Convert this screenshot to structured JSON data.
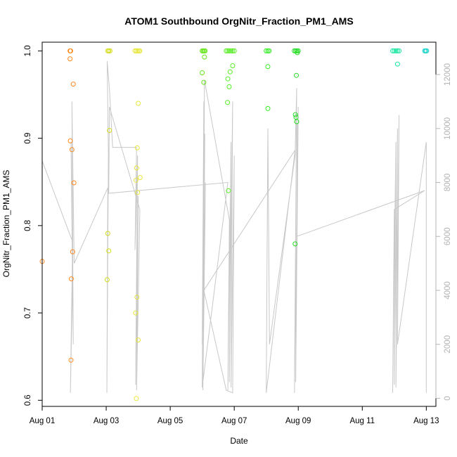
{
  "chart_data": {
    "type": "scatter",
    "title": "ATOM1 Southbound OrgNitr_Fraction_PM1_AMS",
    "xlabel": "Date",
    "ylabel": "OrgNitr_Fraction_PM1_AMS",
    "y2label": "",
    "xlim": [
      0,
      12.3
    ],
    "ylim": [
      0.593,
      1.01
    ],
    "y2lim": [
      -300,
      13200
    ],
    "x_ticks": [
      {
        "value": 0,
        "label": "Aug 01"
      },
      {
        "value": 2,
        "label": "Aug 03"
      },
      {
        "value": 4,
        "label": "Aug 05"
      },
      {
        "value": 6,
        "label": "Aug 07"
      },
      {
        "value": 8,
        "label": "Aug 09"
      },
      {
        "value": 10,
        "label": "Aug 11"
      },
      {
        "value": 12,
        "label": "Aug 13"
      }
    ],
    "y_ticks": [
      "0.6",
      "0.7",
      "0.8",
      "0.9",
      "1.0"
    ],
    "y2_ticks": [
      "0",
      "2000",
      "4000",
      "6000",
      "8000",
      "10000",
      "12000"
    ],
    "grid": false,
    "legend": "none",
    "colors": {
      "axis": "#000000",
      "secondary_axis": "#b4b4b4",
      "altitude_line": "#c8c8c8"
    },
    "series": [
      {
        "points": [
          {
            "x": 0.0,
            "y": 0.759,
            "color": "#ff8a1e"
          },
          {
            "x": 0.87,
            "y": 1.0,
            "color": "#ff8a1e"
          },
          {
            "x": 0.89,
            "y": 1.0,
            "color": "#ff8a1e"
          },
          {
            "x": 0.87,
            "y": 0.991,
            "color": "#ff8a1e"
          },
          {
            "x": 0.97,
            "y": 0.962,
            "color": "#ff8a1e"
          },
          {
            "x": 0.88,
            "y": 0.897,
            "color": "#ff8a1e"
          },
          {
            "x": 0.93,
            "y": 0.887,
            "color": "#ff8a1e"
          },
          {
            "x": 0.99,
            "y": 0.849,
            "color": "#ff8a1e"
          },
          {
            "x": 0.95,
            "y": 0.77,
            "color": "#ff8a1e"
          },
          {
            "x": 0.91,
            "y": 0.739,
            "color": "#ff8a1e"
          },
          {
            "x": 0.9,
            "y": 0.646,
            "color": "#ff8a1e"
          },
          {
            "x": 2.05,
            "y": 1.0,
            "color": "#d4dc1a"
          },
          {
            "x": 2.08,
            "y": 1.0,
            "color": "#d4dc1a"
          },
          {
            "x": 2.12,
            "y": 1.0,
            "color": "#d4dc1a"
          },
          {
            "x": 2.1,
            "y": 0.909,
            "color": "#d4dc1a"
          },
          {
            "x": 2.05,
            "y": 0.791,
            "color": "#d4dc1a"
          },
          {
            "x": 2.08,
            "y": 0.771,
            "color": "#d4dc1a"
          },
          {
            "x": 2.03,
            "y": 0.738,
            "color": "#d4dc1a"
          },
          {
            "x": 2.9,
            "y": 1.0,
            "color": "#e6e63c"
          },
          {
            "x": 2.94,
            "y": 1.0,
            "color": "#e6e63c"
          },
          {
            "x": 2.98,
            "y": 1.0,
            "color": "#e6e63c"
          },
          {
            "x": 3.02,
            "y": 1.0,
            "color": "#e6e63c"
          },
          {
            "x": 3.05,
            "y": 1.0,
            "color": "#e6e63c"
          },
          {
            "x": 3.0,
            "y": 0.94,
            "color": "#e6e63c"
          },
          {
            "x": 2.97,
            "y": 0.889,
            "color": "#e6e63c"
          },
          {
            "x": 2.95,
            "y": 0.866,
            "color": "#e6e63c"
          },
          {
            "x": 3.06,
            "y": 0.855,
            "color": "#e6e63c"
          },
          {
            "x": 2.93,
            "y": 0.852,
            "color": "#e6e63c"
          },
          {
            "x": 2.98,
            "y": 0.838,
            "color": "#e6e63c"
          },
          {
            "x": 2.96,
            "y": 0.718,
            "color": "#e6e63c"
          },
          {
            "x": 2.92,
            "y": 0.7,
            "color": "#e6e63c"
          },
          {
            "x": 3.0,
            "y": 0.669,
            "color": "#e6e63c"
          },
          {
            "x": 2.94,
            "y": 0.602,
            "color": "#e6e63c"
          },
          {
            "x": 5.0,
            "y": 1.0,
            "color": "#66e61a"
          },
          {
            "x": 5.03,
            "y": 1.0,
            "color": "#66e61a"
          },
          {
            "x": 5.06,
            "y": 1.0,
            "color": "#66e61a"
          },
          {
            "x": 5.09,
            "y": 1.0,
            "color": "#66e61a"
          },
          {
            "x": 5.07,
            "y": 0.993,
            "color": "#66e61a"
          },
          {
            "x": 5.0,
            "y": 0.975,
            "color": "#66e61a"
          },
          {
            "x": 5.05,
            "y": 0.964,
            "color": "#66e61a"
          },
          {
            "x": 5.75,
            "y": 1.0,
            "color": "#55ee22"
          },
          {
            "x": 5.8,
            "y": 1.0,
            "color": "#55ee22"
          },
          {
            "x": 5.85,
            "y": 1.0,
            "color": "#55ee22"
          },
          {
            "x": 5.9,
            "y": 1.0,
            "color": "#55ee22"
          },
          {
            "x": 5.95,
            "y": 1.0,
            "color": "#55ee22"
          },
          {
            "x": 6.0,
            "y": 1.0,
            "color": "#55ee22"
          },
          {
            "x": 5.95,
            "y": 0.983,
            "color": "#55ee22"
          },
          {
            "x": 5.87,
            "y": 0.976,
            "color": "#55ee22"
          },
          {
            "x": 5.8,
            "y": 0.968,
            "color": "#55ee22"
          },
          {
            "x": 5.84,
            "y": 0.959,
            "color": "#55ee22"
          },
          {
            "x": 5.79,
            "y": 0.941,
            "color": "#55ee22"
          },
          {
            "x": 5.82,
            "y": 0.84,
            "color": "#55ee22"
          },
          {
            "x": 7.0,
            "y": 1.0,
            "color": "#33ee22"
          },
          {
            "x": 7.05,
            "y": 1.0,
            "color": "#33ee22"
          },
          {
            "x": 7.09,
            "y": 1.0,
            "color": "#33ee22"
          },
          {
            "x": 7.05,
            "y": 0.982,
            "color": "#33ee22"
          },
          {
            "x": 7.05,
            "y": 0.934,
            "color": "#33ee22"
          },
          {
            "x": 7.88,
            "y": 1.0,
            "color": "#22dd22"
          },
          {
            "x": 7.92,
            "y": 1.0,
            "color": "#22dd22"
          },
          {
            "x": 7.96,
            "y": 1.0,
            "color": "#22dd22"
          },
          {
            "x": 8.0,
            "y": 1.0,
            "color": "#22dd22"
          },
          {
            "x": 7.97,
            "y": 0.998,
            "color": "#22dd22"
          },
          {
            "x": 7.94,
            "y": 0.972,
            "color": "#22dd22"
          },
          {
            "x": 7.91,
            "y": 0.927,
            "color": "#22dd22"
          },
          {
            "x": 7.93,
            "y": 0.924,
            "color": "#22dd22"
          },
          {
            "x": 7.95,
            "y": 0.919,
            "color": "#22dd22"
          },
          {
            "x": 7.9,
            "y": 0.779,
            "color": "#22dd22"
          },
          {
            "x": 10.95,
            "y": 1.0,
            "color": "#1ae6a0"
          },
          {
            "x": 11.0,
            "y": 1.0,
            "color": "#1ae6a0"
          },
          {
            "x": 11.05,
            "y": 1.0,
            "color": "#1ae6a0"
          },
          {
            "x": 11.1,
            "y": 1.0,
            "color": "#1ae6a0"
          },
          {
            "x": 11.15,
            "y": 1.0,
            "color": "#1ae6a0"
          },
          {
            "x": 11.1,
            "y": 0.985,
            "color": "#1ae6a0"
          },
          {
            "x": 11.95,
            "y": 1.0,
            "color": "#1ad2c8"
          },
          {
            "x": 11.98,
            "y": 1.0,
            "color": "#1ad2c8"
          },
          {
            "x": 12.01,
            "y": 1.0,
            "color": "#1ad2c8"
          }
        ]
      },
      {
        "axis": "right",
        "style": "line",
        "x": [
          0.0,
          0.95,
          0.88,
          0.95,
          0.9,
          0.97,
          0.93,
          1.0,
          2.05,
          2.02,
          2.07,
          2.03,
          2.1,
          2.2,
          2.95,
          2.9,
          2.98,
          2.92,
          3.0,
          2.95,
          3.05,
          2.1,
          2.08,
          5.8,
          5.0,
          5.05,
          5.0,
          5.08,
          5.02,
          5.1,
          5.03,
          5.07,
          5.85,
          5.8,
          5.9,
          5.85,
          5.95,
          5.9,
          6.0,
          5.95,
          5.75,
          5.05,
          7.9,
          7.0,
          7.05,
          7.1,
          7.9,
          7.95,
          7.88,
          8.0,
          7.92,
          7.97,
          7.95,
          11.95,
          11.0,
          10.95,
          11.05,
          11.0,
          11.1,
          11.05,
          11.15,
          11.1,
          12.0,
          12.0
        ],
        "y": [
          8800,
          5800,
          200,
          4500,
          9500,
          2000,
          11000,
          5000,
          7800,
          200,
          9000,
          12500,
          11500,
          9300,
          9300,
          5500,
          9000,
          500,
          7500,
          300,
          7000,
          10800,
          7600,
          8000,
          400,
          11000,
          2000,
          9800,
          300,
          8000,
          2500,
          11800,
          6600,
          300,
          9500,
          600,
          11000,
          400,
          9000,
          200,
          300,
          4000,
          9200,
          200,
          10000,
          2000,
          9000,
          11500,
          200,
          10800,
          600,
          10200,
          6000,
          7700,
          7000,
          200,
          9500,
          500,
          10000,
          400,
          10500,
          2000,
          9500,
          200
        ]
      }
    ]
  }
}
